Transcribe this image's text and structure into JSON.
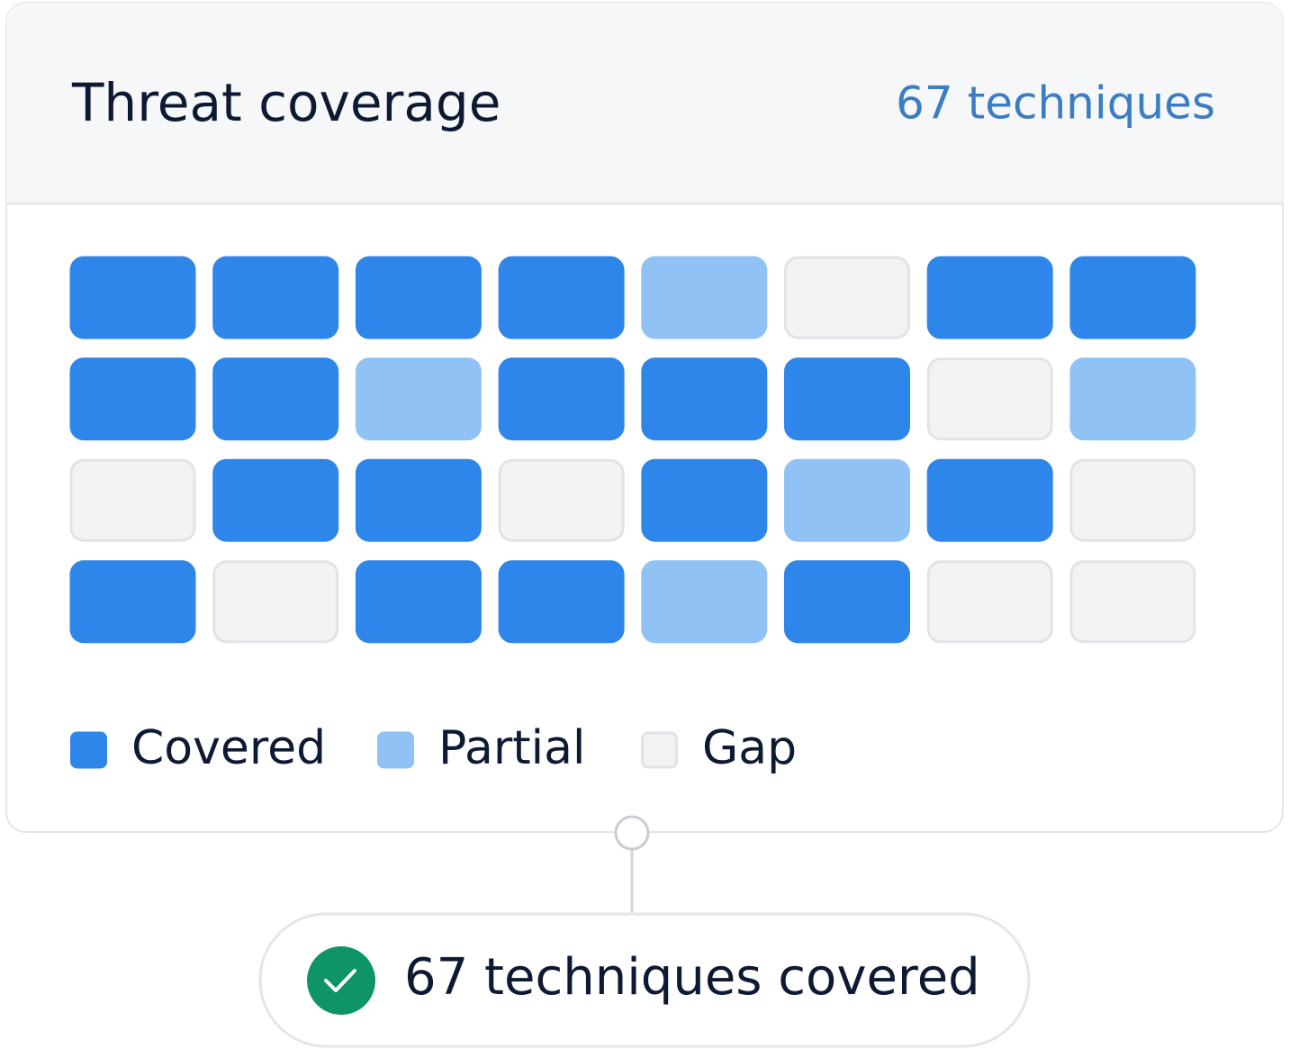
{
  "card": {
    "title": "Threat coverage",
    "count": "67 techniques"
  },
  "legend": [
    {
      "label": "Covered",
      "color": "#2f86ea",
      "border": "#2f86ea"
    },
    {
      "label": "Partial",
      "color": "#90c2f6",
      "border": "#90c2f6"
    },
    {
      "label": "Gap",
      "color": "#f2f3f5",
      "border": "#e1e3e7"
    }
  ],
  "grid": [
    [
      0,
      0,
      0,
      0,
      1,
      2,
      0,
      0
    ],
    [
      0,
      0,
      1,
      0,
      0,
      0,
      2,
      1
    ],
    [
      2,
      0,
      0,
      2,
      0,
      1,
      0,
      2
    ],
    [
      0,
      2,
      0,
      0,
      1,
      0,
      2,
      2
    ]
  ],
  "badge": {
    "label": "67 techniques covered"
  }
}
